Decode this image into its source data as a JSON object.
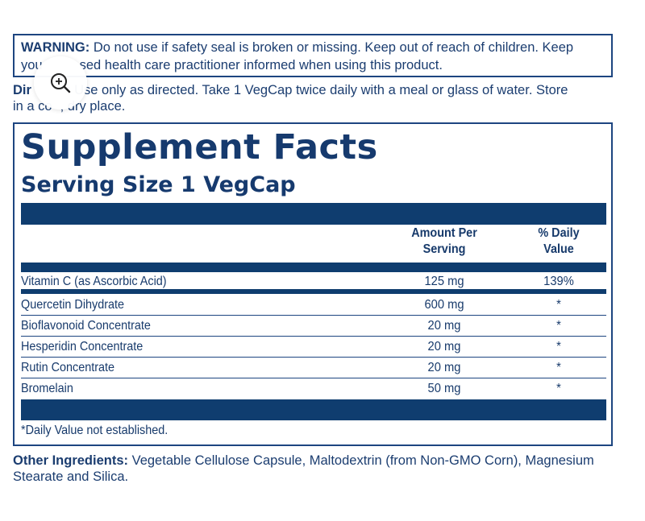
{
  "warning": {
    "label": "WARNING:",
    "line1": "Do not use if safety seal is broken or missing. Keep out of reach of children. Keep",
    "line2_start": "you",
    "line2_end": "sed health care practitioner informed when using this product."
  },
  "directions": {
    "label_visible": "Dir",
    "line1": ": Use only as directed. Take 1 VegCap twice daily with a meal or glass of water. Store",
    "line2_start": "in a co",
    "line2_end": ", dry place."
  },
  "zoom": {
    "icon": "zoom-in-icon"
  },
  "supplement_facts": {
    "title": "Supplement Facts",
    "serving_size": "Serving Size 1 VegCap",
    "header_amount_1": "Amount Per",
    "header_amount_2": "Serving",
    "header_daily_1": "% Daily",
    "header_daily_2": "Value",
    "rows": [
      {
        "name": "Vitamin C (as Ascorbic Acid)",
        "amount": "125 mg",
        "daily": "139%"
      },
      {
        "name": "Quercetin Dihydrate",
        "amount": "600 mg",
        "daily": "*"
      },
      {
        "name": "Bioflavonoid Concentrate",
        "amount": "20 mg",
        "daily": "*"
      },
      {
        "name": "Hesperidin Concentrate",
        "amount": "20 mg",
        "daily": "*"
      },
      {
        "name": "Rutin Concentrate",
        "amount": "20 mg",
        "daily": "*"
      },
      {
        "name": "Bromelain",
        "amount": "50 mg",
        "daily": "*"
      }
    ],
    "footnote": "*Daily Value not established."
  },
  "other_ingredients": {
    "label": "Other Ingredients:",
    "text": "Vegetable Cellulose Capsule, Maltodextrin (from Non-GMO Corn), Magnesium Stearate and Silica."
  },
  "colors": {
    "primary": "#0f3d6f",
    "text": "#173a6b"
  }
}
